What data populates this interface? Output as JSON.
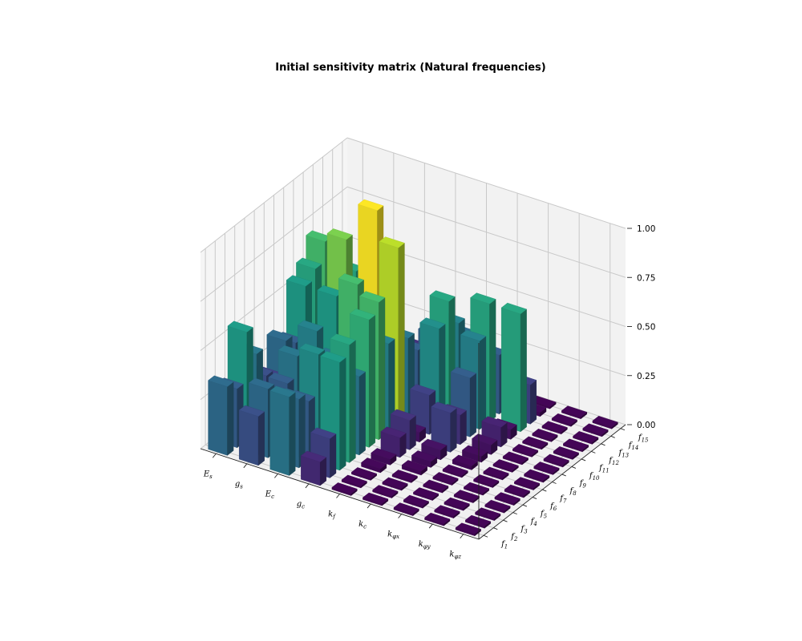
{
  "chart_data": {
    "type": "bar3d",
    "title": "Initial sensitivity matrix (Natural frequencies)",
    "x_categories": [
      "E_s",
      "g_s",
      "E_c",
      "g_c",
      "k_f",
      "k_c",
      "k_{φ_x}",
      "k_{φ_y}",
      "k_{φ_z}"
    ],
    "x_labels": [
      {
        "base": "E",
        "sub": "s"
      },
      {
        "base": "g",
        "sub": "s"
      },
      {
        "base": "E",
        "sub": "c"
      },
      {
        "base": "g",
        "sub": "c"
      },
      {
        "base": "k",
        "sub": "f"
      },
      {
        "base": "k",
        "sub": "c"
      },
      {
        "base": "k",
        "sub": "φx"
      },
      {
        "base": "k",
        "sub": "φy"
      },
      {
        "base": "k",
        "sub": "φz"
      }
    ],
    "y_categories": [
      "f1",
      "f2",
      "f3",
      "f4",
      "f5",
      "f6",
      "f7",
      "f8",
      "f9",
      "f10",
      "f11",
      "f12",
      "f13",
      "f14",
      "f15"
    ],
    "y_labels": [
      {
        "base": "f",
        "sub": "1"
      },
      {
        "base": "f",
        "sub": "2"
      },
      {
        "base": "f",
        "sub": "3"
      },
      {
        "base": "f",
        "sub": "4"
      },
      {
        "base": "f",
        "sub": "5"
      },
      {
        "base": "f",
        "sub": "6"
      },
      {
        "base": "f",
        "sub": "7"
      },
      {
        "base": "f",
        "sub": "8"
      },
      {
        "base": "f",
        "sub": "9"
      },
      {
        "base": "f",
        "sub": "10"
      },
      {
        "base": "f",
        "sub": "11"
      },
      {
        "base": "f",
        "sub": "12"
      },
      {
        "base": "f",
        "sub": "13"
      },
      {
        "base": "f",
        "sub": "14"
      },
      {
        "base": "f",
        "sub": "15"
      }
    ],
    "z_ticks": [
      "0.00",
      "0.25",
      "0.50",
      "0.75",
      "1.00"
    ],
    "zlim": [
      0,
      1
    ],
    "colormap": "viridis",
    "values": [
      [
        0.35,
        0.3,
        0.55,
        0.4,
        0.25,
        0.2,
        0.35,
        0.3,
        0.55,
        0.6,
        0.7,
        0.45,
        0.05,
        0.1,
        0.05
      ],
      [
        0.25,
        0.35,
        0.15,
        0.3,
        0.4,
        0.2,
        0.45,
        0.15,
        0.55,
        0.8,
        0.6,
        0.3,
        0.02,
        0.05,
        0.03
      ],
      [
        0.4,
        0.35,
        0.3,
        0.5,
        0.25,
        0.4,
        0.3,
        0.7,
        0.2,
        1.0,
        0.5,
        0.25,
        0.05,
        0.15,
        0.02
      ],
      [
        0.12,
        0.2,
        0.55,
        0.6,
        0.4,
        0.65,
        0.7,
        0.45,
        0.9,
        0.4,
        0.3,
        0.2,
        0.3,
        0.05,
        0.1
      ],
      [
        0.01,
        0.01,
        0.01,
        0.02,
        0.03,
        0.1,
        0.15,
        0.05,
        0.2,
        0.5,
        0.6,
        0.45,
        0.35,
        0.25,
        0.05
      ],
      [
        0.01,
        0.01,
        0.01,
        0.01,
        0.02,
        0.03,
        0.05,
        0.2,
        0.15,
        0.3,
        0.45,
        0.6,
        0.3,
        0.02,
        0.01
      ],
      [
        0.01,
        0.01,
        0.01,
        0.01,
        0.01,
        0.01,
        0.02,
        0.03,
        0.05,
        0.1,
        0.05,
        0.6,
        0.2,
        0.02,
        0.01
      ],
      [
        0.01,
        0.01,
        0.01,
        0.01,
        0.01,
        0.01,
        0.01,
        0.01,
        0.01,
        0.01,
        0.01,
        0.01,
        0.01,
        0.01,
        0.01
      ],
      [
        0.01,
        0.01,
        0.01,
        0.01,
        0.01,
        0.01,
        0.01,
        0.01,
        0.01,
        0.01,
        0.01,
        0.01,
        0.01,
        0.01,
        0.01
      ]
    ]
  }
}
